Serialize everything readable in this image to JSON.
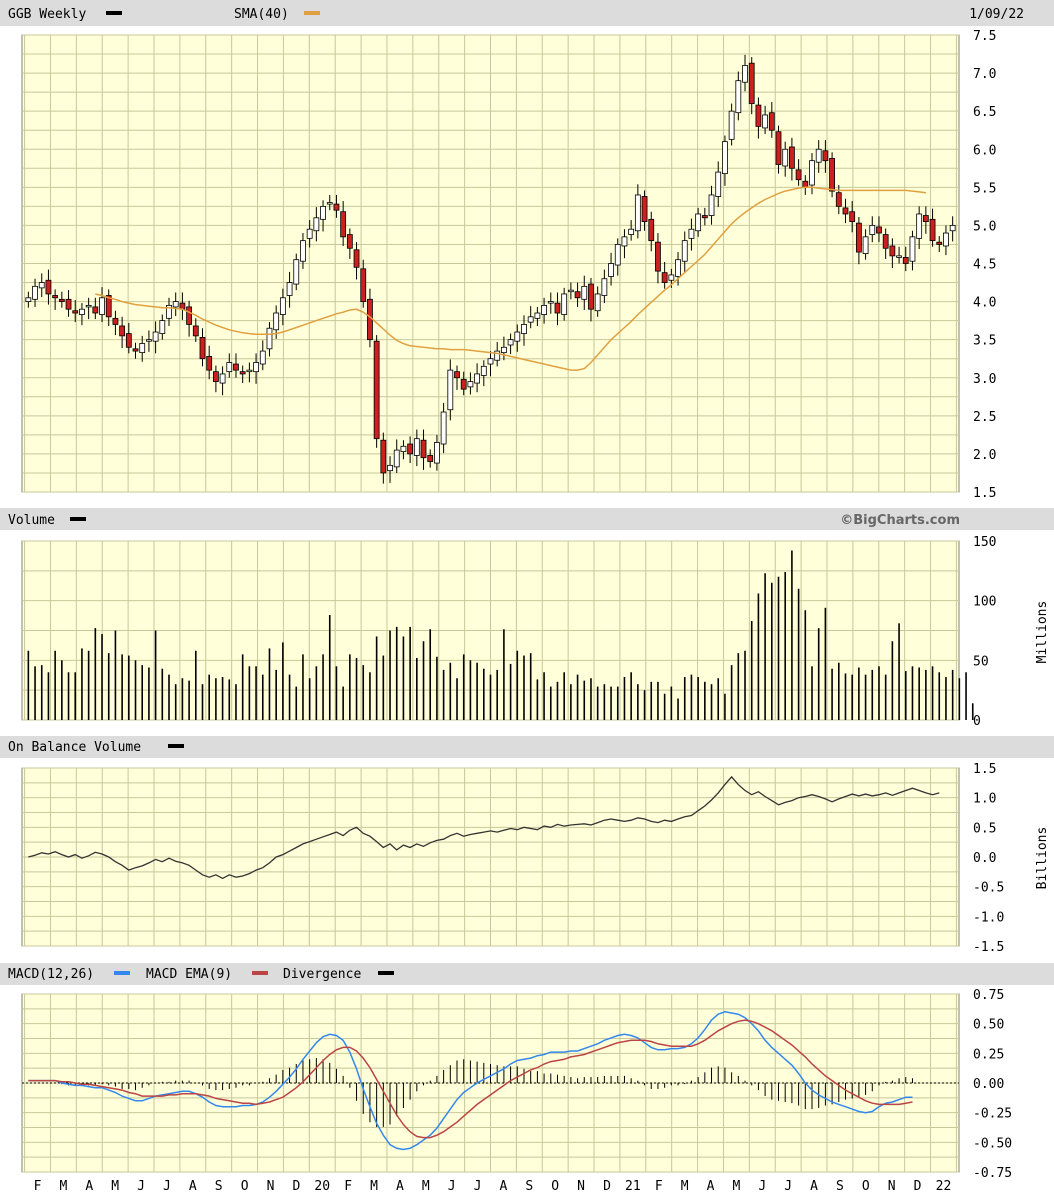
{
  "header": {
    "symbol_label": "GGB Weekly",
    "sma_label": "SMA(40)",
    "date": "1/09/22"
  },
  "volume_panel": {
    "title": "Volume",
    "watermark": "©BigCharts.com",
    "unit": "Millions"
  },
  "obv_panel": {
    "title": "On Balance Volume",
    "unit": "Billions"
  },
  "macd_panel": {
    "macd_label": "MACD(12,26)",
    "ema_label": "MACD EMA(9)",
    "div_label": "Divergence"
  },
  "colors": {
    "bg": "#ffffd9",
    "grid": "#c8c89a",
    "up": "#ffffff",
    "down": "#cc2020",
    "sma": "#e0a040",
    "macd": "#3388ee",
    "ema": "#bb4444",
    "line": "#333333",
    "strip": "#dcdcdc"
  },
  "chart_data": [
    {
      "type": "candlestick",
      "title": "GGB Weekly",
      "ylim": [
        1.5,
        7.5
      ],
      "yticks": [
        "7.5",
        "7.0",
        "6.5",
        "6.0",
        "5.5",
        "5.0",
        "4.5",
        "4.0",
        "3.5",
        "3.0",
        "2.5",
        "2.0",
        "1.5"
      ],
      "x_month_labels": [
        "F",
        "M",
        "A",
        "M",
        "J",
        "J",
        "A",
        "S",
        "O",
        "N",
        "D",
        "20",
        "F",
        "M",
        "A",
        "M",
        "J",
        "J",
        "A",
        "S",
        "O",
        "N",
        "D",
        "21",
        "F",
        "M",
        "A",
        "M",
        "J",
        "J",
        "A",
        "S",
        "O",
        "N",
        "D",
        "22"
      ],
      "close": [
        4.05,
        4.2,
        4.25,
        4.1,
        4.05,
        4.0,
        3.9,
        3.85,
        3.9,
        3.95,
        3.85,
        4.05,
        3.8,
        3.7,
        3.55,
        3.4,
        3.35,
        3.45,
        3.5,
        3.6,
        3.75,
        3.95,
        4.0,
        3.9,
        3.7,
        3.55,
        3.25,
        3.1,
        2.95,
        3.05,
        3.2,
        3.1,
        3.05,
        3.1,
        3.2,
        3.35,
        3.65,
        3.85,
        4.05,
        4.25,
        4.55,
        4.8,
        4.95,
        5.1,
        5.25,
        5.3,
        5.2,
        4.85,
        4.7,
        4.45,
        4.0,
        3.5,
        2.2,
        1.75,
        1.85,
        2.05,
        2.1,
        2.0,
        2.2,
        1.95,
        1.9,
        2.15,
        2.55,
        3.1,
        3.0,
        2.85,
        2.95,
        3.05,
        3.15,
        3.25,
        3.35,
        3.4,
        3.5,
        3.6,
        3.7,
        3.8,
        3.85,
        3.95,
        4.0,
        3.85,
        4.1,
        4.15,
        4.05,
        4.2,
        3.9,
        4.1,
        4.3,
        4.5,
        4.75,
        4.85,
        4.95,
        5.4,
        5.05,
        4.8,
        4.4,
        4.25,
        4.35,
        4.55,
        4.8,
        4.95,
        5.15,
        5.1,
        5.4,
        5.7,
        6.1,
        6.5,
        6.9,
        7.1,
        6.6,
        6.3,
        6.45,
        6.25,
        5.8,
        6.0,
        5.75,
        5.6,
        5.5,
        5.85,
        6.0,
        5.85,
        5.45,
        5.25,
        5.15,
        5.05,
        4.65,
        4.85,
        5.0,
        4.9,
        4.7,
        4.6,
        4.6,
        4.5,
        4.85,
        5.15,
        5.05,
        4.8,
        4.75,
        4.9,
        5.0
      ],
      "sma40": [
        null,
        null,
        null,
        null,
        null,
        null,
        null,
        null,
        null,
        null,
        4.1,
        4.08,
        4.05,
        4.03,
        4.0,
        3.98,
        3.96,
        3.95,
        3.94,
        3.93,
        3.92,
        3.92,
        3.91,
        3.9,
        3.86,
        3.82,
        3.77,
        3.73,
        3.69,
        3.66,
        3.63,
        3.61,
        3.59,
        3.58,
        3.57,
        3.57,
        3.57,
        3.58,
        3.6,
        3.63,
        3.66,
        3.69,
        3.72,
        3.75,
        3.78,
        3.81,
        3.84,
        3.86,
        3.89,
        3.9,
        3.86,
        3.8,
        3.72,
        3.64,
        3.56,
        3.49,
        3.45,
        3.42,
        3.41,
        3.4,
        3.39,
        3.38,
        3.38,
        3.37,
        3.37,
        3.37,
        3.36,
        3.35,
        3.34,
        3.33,
        3.32,
        3.3,
        3.28,
        3.26,
        3.24,
        3.22,
        3.2,
        3.18,
        3.16,
        3.14,
        3.12,
        3.1,
        3.1,
        3.12,
        3.2,
        3.3,
        3.4,
        3.5,
        3.58,
        3.66,
        3.74,
        3.83,
        3.91,
        3.99,
        4.07,
        4.15,
        4.22,
        4.3,
        4.38,
        4.46,
        4.54,
        4.62,
        4.72,
        4.82,
        4.92,
        5.02,
        5.1,
        5.17,
        5.23,
        5.29,
        5.34,
        5.38,
        5.42,
        5.45,
        5.47,
        5.49,
        5.5,
        5.5,
        5.49,
        5.48,
        5.47,
        5.46,
        5.46,
        5.46,
        5.46,
        5.46,
        5.46,
        5.46,
        5.46,
        5.46,
        5.46,
        5.46,
        5.45,
        5.44,
        5.43
      ]
    },
    {
      "type": "bar",
      "title": "Volume",
      "ylabel": "Millions",
      "ylim": [
        0,
        150
      ],
      "yticks": [
        "150",
        "100",
        "50",
        "0"
      ],
      "values": [
        58,
        45,
        46,
        40,
        58,
        50,
        40,
        40,
        60,
        58,
        77,
        72,
        56,
        75,
        55,
        54,
        50,
        46,
        44,
        75,
        43,
        38,
        30,
        35,
        33,
        58,
        30,
        38,
        35,
        36,
        34,
        30,
        55,
        45,
        45,
        38,
        60,
        42,
        65,
        38,
        28,
        55,
        35,
        45,
        55,
        88,
        45,
        28,
        55,
        52,
        46,
        40,
        70,
        54,
        75,
        78,
        70,
        78,
        52,
        66,
        76,
        53,
        42,
        48,
        35,
        55,
        50,
        48,
        43,
        38,
        42,
        76,
        47,
        58,
        54,
        56,
        34,
        40,
        28,
        32,
        40,
        30,
        38,
        33,
        35,
        28,
        30,
        28,
        28,
        36,
        40,
        30,
        25,
        32,
        32,
        22,
        28,
        18,
        36,
        38,
        36,
        32,
        30,
        35,
        22,
        46,
        56,
        58,
        83,
        106,
        123,
        115,
        120,
        124,
        142,
        110,
        92,
        45,
        77,
        94,
        43,
        48,
        39,
        38,
        44,
        38,
        42,
        45,
        38,
        66,
        81,
        41,
        45,
        44,
        42,
        45,
        40,
        36,
        42,
        35,
        40,
        14
      ],
      "xlim": [
        "2019-01-06",
        "2022-01-09"
      ]
    },
    {
      "type": "line",
      "title": "On Balance Volume",
      "ylabel": "Billions",
      "ylim": [
        -1.5,
        1.5
      ],
      "yticks": [
        "1.5",
        "1.0",
        "0.5",
        "0.0",
        "-0.5",
        "-1.0",
        "-1.5"
      ],
      "values": [
        0.0,
        0.03,
        0.07,
        0.05,
        0.09,
        0.04,
        0.0,
        0.04,
        -0.02,
        0.02,
        0.08,
        0.05,
        0.0,
        -0.08,
        -0.14,
        -0.22,
        -0.18,
        -0.15,
        -0.1,
        -0.04,
        -0.08,
        -0.02,
        -0.07,
        -0.1,
        -0.14,
        -0.22,
        -0.3,
        -0.34,
        -0.3,
        -0.36,
        -0.3,
        -0.34,
        -0.32,
        -0.28,
        -0.22,
        -0.18,
        -0.1,
        0.0,
        0.04,
        0.1,
        0.16,
        0.22,
        0.26,
        0.3,
        0.34,
        0.38,
        0.42,
        0.36,
        0.45,
        0.5,
        0.4,
        0.35,
        0.26,
        0.16,
        0.22,
        0.12,
        0.2,
        0.16,
        0.22,
        0.18,
        0.24,
        0.28,
        0.3,
        0.36,
        0.4,
        0.35,
        0.38,
        0.4,
        0.42,
        0.44,
        0.42,
        0.45,
        0.48,
        0.46,
        0.5,
        0.48,
        0.46,
        0.52,
        0.5,
        0.55,
        0.52,
        0.54,
        0.55,
        0.56,
        0.54,
        0.58,
        0.62,
        0.64,
        0.62,
        0.6,
        0.62,
        0.66,
        0.64,
        0.6,
        0.58,
        0.62,
        0.6,
        0.64,
        0.68,
        0.7,
        0.78,
        0.86,
        0.96,
        1.08,
        1.22,
        1.35,
        1.22,
        1.12,
        1.05,
        1.1,
        1.02,
        0.95,
        0.88,
        0.92,
        0.95,
        1.0,
        1.02,
        1.05,
        1.02,
        0.98,
        0.93,
        0.98,
        1.02,
        1.06,
        1.03,
        1.06,
        1.03,
        1.05,
        1.08,
        1.04,
        1.08,
        1.12,
        1.16,
        1.12,
        1.08,
        1.05,
        1.08
      ]
    },
    {
      "type": "line",
      "title": "MACD(12,26)",
      "ylim": [
        -0.75,
        0.75
      ],
      "yticks": [
        "0.75",
        "0.50",
        "0.25",
        "0.00",
        "-0.25",
        "-0.50",
        "-0.75"
      ],
      "series": [
        {
          "name": "MACD(12,26)",
          "values": [
            0.02,
            0.02,
            0.02,
            0.02,
            0.02,
            0.0,
            -0.01,
            -0.02,
            -0.02,
            -0.03,
            -0.04,
            -0.04,
            -0.06,
            -0.08,
            -0.11,
            -0.13,
            -0.15,
            -0.15,
            -0.13,
            -0.11,
            -0.1,
            -0.09,
            -0.08,
            -0.07,
            -0.07,
            -0.09,
            -0.12,
            -0.16,
            -0.19,
            -0.2,
            -0.2,
            -0.2,
            -0.19,
            -0.19,
            -0.18,
            -0.16,
            -0.12,
            -0.07,
            -0.01,
            0.05,
            0.12,
            0.2,
            0.27,
            0.34,
            0.39,
            0.41,
            0.4,
            0.36,
            0.26,
            0.12,
            -0.05,
            -0.2,
            -0.34,
            -0.44,
            -0.52,
            -0.55,
            -0.56,
            -0.55,
            -0.52,
            -0.48,
            -0.44,
            -0.38,
            -0.3,
            -0.22,
            -0.14,
            -0.08,
            -0.04,
            0.0,
            0.03,
            0.06,
            0.09,
            0.12,
            0.16,
            0.19,
            0.2,
            0.21,
            0.23,
            0.24,
            0.26,
            0.26,
            0.26,
            0.27,
            0.27,
            0.29,
            0.31,
            0.33,
            0.36,
            0.38,
            0.4,
            0.41,
            0.4,
            0.38,
            0.34,
            0.3,
            0.28,
            0.28,
            0.29,
            0.29,
            0.3,
            0.33,
            0.38,
            0.45,
            0.53,
            0.58,
            0.6,
            0.59,
            0.58,
            0.55,
            0.5,
            0.44,
            0.36,
            0.3,
            0.25,
            0.2,
            0.15,
            0.08,
            0.0,
            -0.06,
            -0.1,
            -0.13,
            -0.16,
            -0.18,
            -0.2,
            -0.22,
            -0.24,
            -0.25,
            -0.24,
            -0.2,
            -0.17,
            -0.16,
            -0.14,
            -0.12,
            -0.12
          ]
        },
        {
          "name": "MACD EMA(9)",
          "values": [
            0.02,
            0.02,
            0.02,
            0.02,
            0.02,
            0.01,
            0.01,
            0.0,
            -0.01,
            -0.01,
            -0.02,
            -0.03,
            -0.04,
            -0.05,
            -0.06,
            -0.08,
            -0.09,
            -0.11,
            -0.11,
            -0.11,
            -0.11,
            -0.1,
            -0.1,
            -0.09,
            -0.09,
            -0.09,
            -0.1,
            -0.11,
            -0.13,
            -0.14,
            -0.15,
            -0.16,
            -0.17,
            -0.17,
            -0.18,
            -0.17,
            -0.16,
            -0.14,
            -0.12,
            -0.08,
            -0.04,
            0.01,
            0.07,
            0.13,
            0.19,
            0.24,
            0.28,
            0.3,
            0.3,
            0.27,
            0.21,
            0.13,
            0.03,
            -0.07,
            -0.17,
            -0.27,
            -0.35,
            -0.41,
            -0.45,
            -0.46,
            -0.46,
            -0.44,
            -0.41,
            -0.37,
            -0.33,
            -0.28,
            -0.23,
            -0.18,
            -0.14,
            -0.1,
            -0.06,
            -0.02,
            0.02,
            0.05,
            0.08,
            0.11,
            0.13,
            0.16,
            0.18,
            0.19,
            0.2,
            0.22,
            0.23,
            0.24,
            0.26,
            0.28,
            0.3,
            0.32,
            0.34,
            0.35,
            0.36,
            0.36,
            0.36,
            0.35,
            0.33,
            0.32,
            0.31,
            0.31,
            0.31,
            0.31,
            0.33,
            0.36,
            0.4,
            0.44,
            0.47,
            0.5,
            0.52,
            0.53,
            0.52,
            0.5,
            0.47,
            0.44,
            0.4,
            0.36,
            0.32,
            0.27,
            0.22,
            0.16,
            0.11,
            0.06,
            0.02,
            -0.02,
            -0.06,
            -0.09,
            -0.12,
            -0.15,
            -0.17,
            -0.18,
            -0.18,
            -0.18,
            -0.18,
            -0.17,
            -0.16
          ]
        },
        {
          "name": "Divergence",
          "values": [
            0.0,
            0.0,
            0.0,
            0.0,
            0.0,
            -0.01,
            -0.02,
            -0.02,
            -0.01,
            -0.02,
            -0.02,
            -0.01,
            -0.02,
            -0.03,
            -0.05,
            -0.05,
            -0.06,
            -0.04,
            -0.02,
            0.0,
            0.01,
            0.01,
            0.02,
            0.02,
            0.02,
            0.0,
            -0.02,
            -0.05,
            -0.06,
            -0.06,
            -0.05,
            -0.04,
            -0.02,
            -0.02,
            0.0,
            0.01,
            0.04,
            0.07,
            0.11,
            0.13,
            0.16,
            0.19,
            0.2,
            0.21,
            0.2,
            0.17,
            0.12,
            0.06,
            -0.04,
            -0.15,
            -0.26,
            -0.33,
            -0.37,
            -0.37,
            -0.35,
            -0.28,
            -0.21,
            -0.14,
            -0.07,
            -0.02,
            0.02,
            0.06,
            0.11,
            0.15,
            0.19,
            0.2,
            0.19,
            0.18,
            0.17,
            0.16,
            0.15,
            0.14,
            0.14,
            0.14,
            0.12,
            0.1,
            0.1,
            0.08,
            0.08,
            0.07,
            0.06,
            0.05,
            0.04,
            0.05,
            0.05,
            0.05,
            0.06,
            0.06,
            0.06,
            0.06,
            0.04,
            0.02,
            -0.02,
            -0.05,
            -0.05,
            -0.04,
            -0.02,
            -0.02,
            -0.01,
            0.02,
            0.05,
            0.09,
            0.13,
            0.14,
            0.13,
            0.09,
            0.06,
            0.02,
            -0.02,
            -0.06,
            -0.11,
            -0.14,
            -0.15,
            -0.16,
            -0.17,
            -0.19,
            -0.22,
            -0.22,
            -0.21,
            -0.19,
            -0.18,
            -0.16,
            -0.14,
            -0.13,
            -0.12,
            -0.1,
            -0.07,
            -0.02,
            0.01,
            0.02,
            0.04,
            0.05,
            0.04
          ]
        }
      ]
    }
  ]
}
